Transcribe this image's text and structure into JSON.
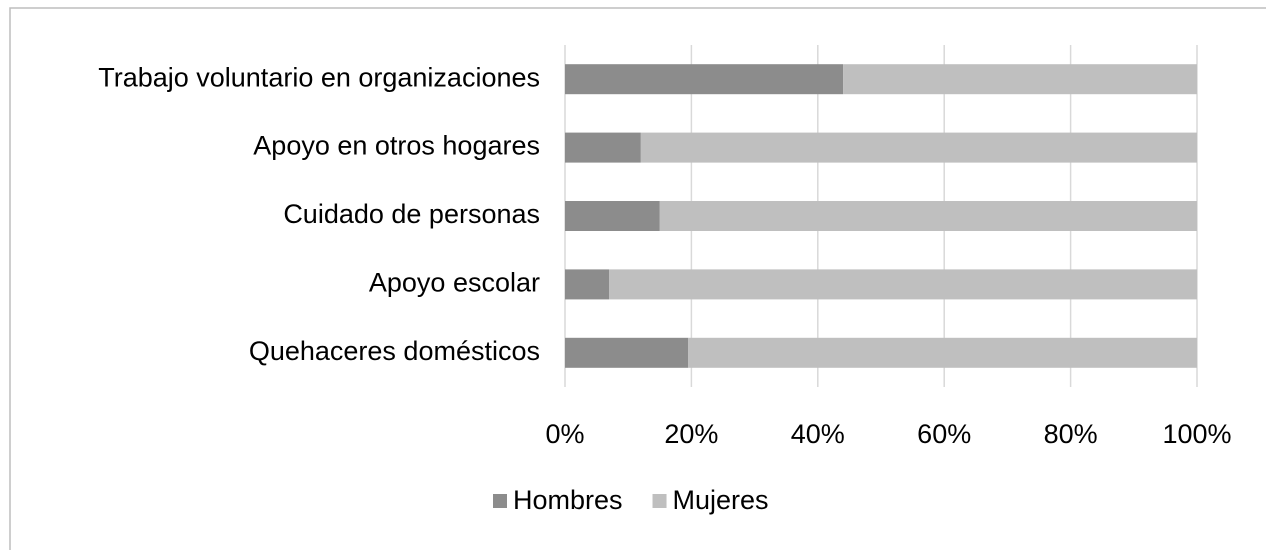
{
  "chart_data": {
    "type": "stacked-bar-horizontal",
    "categories": [
      "Trabajo voluntario en organizaciones",
      "Apoyo en otros hogares",
      "Cuidado de personas",
      "Apoyo escolar",
      "Quehaceres domésticos"
    ],
    "series": [
      {
        "name": "Hombres",
        "color": "#8c8c8c",
        "values": [
          44,
          12,
          15,
          7,
          19.5
        ]
      },
      {
        "name": "Mujeres",
        "color": "#bfbfbf",
        "values": [
          56,
          88,
          85,
          93,
          80.5
        ]
      }
    ],
    "xlim": [
      0,
      100
    ],
    "xticks": [
      {
        "value": 0,
        "label": "0%"
      },
      {
        "value": 20,
        "label": "20%"
      },
      {
        "value": 40,
        "label": "40%"
      },
      {
        "value": 60,
        "label": "60%"
      },
      {
        "value": 80,
        "label": "80%"
      },
      {
        "value": 100,
        "label": "100%"
      }
    ],
    "grid": true,
    "legend": "bottom"
  }
}
